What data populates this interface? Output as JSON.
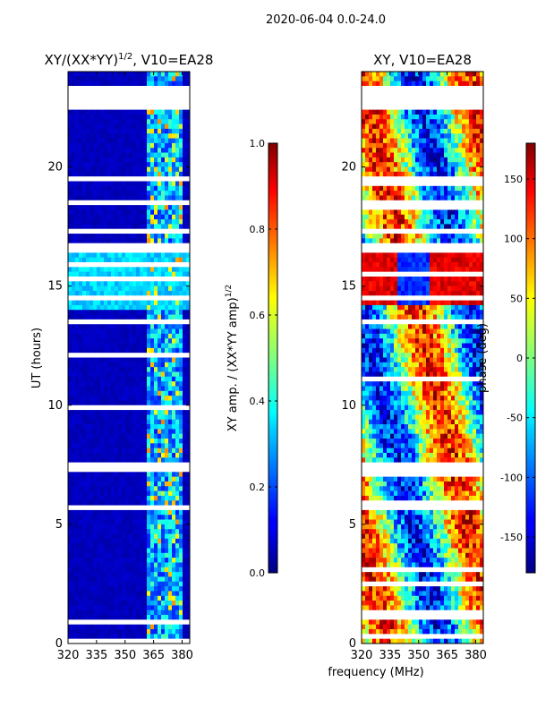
{
  "figure": {
    "suptitle": "2020-06-04 0.0-24.0",
    "xlabel_shared": "frequency (MHz)"
  },
  "chart_data": [
    {
      "type": "heatmap",
      "title": "XY/(XX*YY)",
      "title_exponent": "1/2",
      "title_suffix": ", V10=EA28",
      "xlabel": "",
      "ylabel": "UT (hours)",
      "xlim": [
        320,
        384
      ],
      "ylim": [
        0,
        24
      ],
      "xticks": [
        320,
        335,
        350,
        365,
        380
      ],
      "yticks": [
        0,
        5,
        10,
        15,
        20
      ],
      "colorbar": {
        "label": "XY amp. / (XX*YY amp)",
        "label_exponent": "1/2",
        "range": [
          0.0,
          1.0
        ],
        "ticks": [
          "0.0",
          "0.2",
          "0.4",
          "0.6",
          "0.8",
          "1.0"
        ]
      },
      "white_gaps_hours": [
        [
          22.4,
          23.3
        ],
        [
          17.2,
          17.4
        ],
        [
          16.5,
          16.8
        ],
        [
          13.4,
          13.6
        ],
        [
          7.3,
          7.5
        ],
        [
          5.6,
          5.8
        ]
      ]
    },
    {
      "type": "heatmap",
      "title": "XY, V10=EA28",
      "xlabel": "frequency (MHz)",
      "ylabel": "",
      "xlim": [
        320,
        384
      ],
      "ylim": [
        0,
        24
      ],
      "xticks": [
        320,
        335,
        350,
        365,
        380
      ],
      "yticks": [
        0,
        5,
        10,
        15,
        20
      ],
      "colorbar": {
        "label": "phase (deg)",
        "range": [
          -180,
          180
        ],
        "ticks": [
          "-150",
          "-100",
          "-50",
          "0",
          "50",
          "100",
          "150"
        ]
      },
      "white_gaps_hours": [
        [
          22.4,
          23.3
        ],
        [
          17.2,
          17.4
        ],
        [
          16.5,
          16.8
        ],
        [
          13.4,
          13.6
        ],
        [
          7.3,
          7.5
        ],
        [
          5.6,
          5.8
        ]
      ]
    }
  ]
}
